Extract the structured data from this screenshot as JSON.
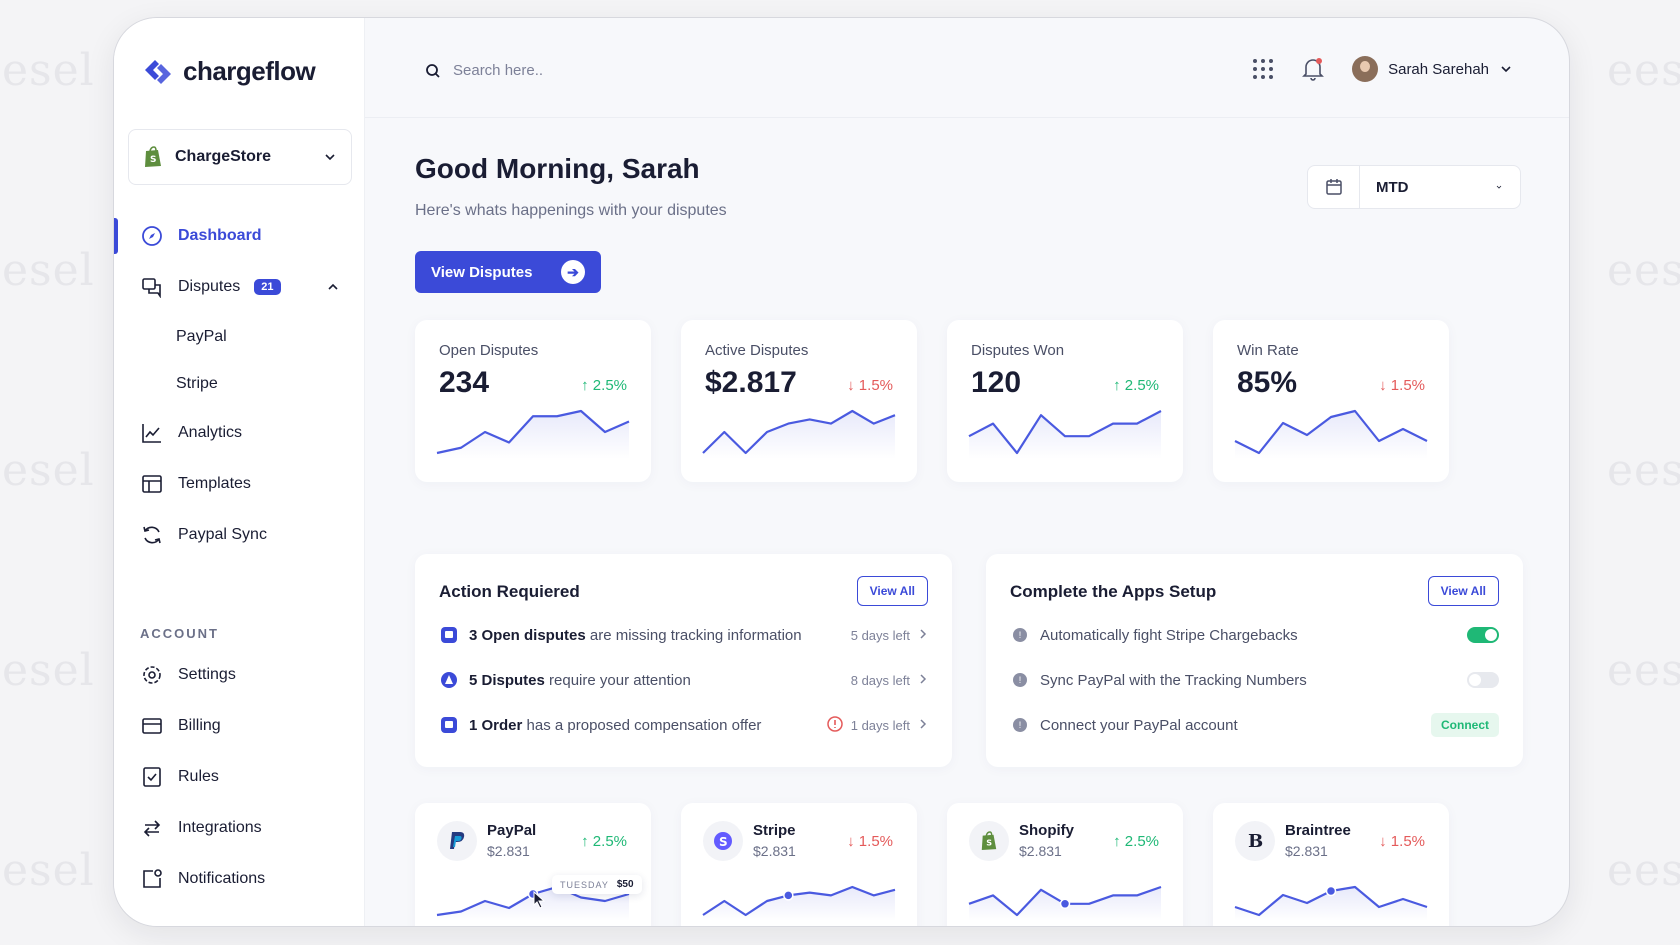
{
  "watermark": "esel",
  "watermark_right": "eese",
  "brand": {
    "name": "chargeflow",
    "accent": "#3b4ad8"
  },
  "store": {
    "name": "ChargeStore"
  },
  "nav": {
    "dashboard": "Dashboard",
    "disputes": "Disputes",
    "disputes_badge": "21",
    "paypal": "PayPal",
    "stripe": "Stripe",
    "analytics": "Analytics",
    "templates": "Templates",
    "paypal_sync": "Paypal Sync",
    "account_section": "ACCOUNT",
    "settings": "Settings",
    "billing": "Billing",
    "rules": "Rules",
    "integrations": "Integrations",
    "notifications": "Notifications"
  },
  "topbar": {
    "search_placeholder": "Search here..",
    "user_name": "Sarah Sarehah"
  },
  "header": {
    "greeting": "Good Morning, Sarah",
    "subtitle": "Here's whats happenings with your disputes",
    "cta": "View Disputes",
    "period": "MTD"
  },
  "stats": [
    {
      "title": "Open Disputes",
      "value": "234",
      "delta": "2.5%",
      "direction": "up",
      "trend": [
        4,
        5,
        8,
        6,
        11,
        11,
        12,
        8,
        10
      ]
    },
    {
      "title": "Active Disputes",
      "value": "$2.817",
      "delta": "1.5%",
      "direction": "down",
      "trend": [
        4,
        9,
        4,
        9,
        11,
        12,
        11,
        14,
        11,
        13
      ]
    },
    {
      "title": "Disputes Won",
      "value": "120",
      "delta": "2.5%",
      "direction": "up",
      "trend": [
        8,
        11,
        4,
        13,
        8,
        8,
        11,
        11,
        14
      ]
    },
    {
      "title": "Win Rate",
      "value": "85%",
      "delta": "1.5%",
      "direction": "down",
      "trend": [
        8,
        6,
        11,
        9,
        12,
        13,
        8,
        10,
        8
      ]
    }
  ],
  "action_required": {
    "title": "Action Requiered",
    "view_all": "View All",
    "items": [
      {
        "bold": "3 Open disputes",
        "text": " are missing tracking information",
        "meta": "5 days left"
      },
      {
        "bold": "5 Disputes",
        "text": " require your attention",
        "meta": "8 days left"
      },
      {
        "bold": "1 Order",
        "text": " has a proposed compensation offer",
        "meta": "1 days left"
      }
    ]
  },
  "apps_setup": {
    "title": "Complete the Apps Setup",
    "view_all": "View All",
    "items": [
      {
        "text": "Automatically fight Stripe Chargebacks",
        "control": "toggle-on"
      },
      {
        "text": "Sync PayPal with the Tracking Numbers",
        "control": "toggle-off"
      },
      {
        "text": "Connect your PayPal account",
        "control": "button",
        "label": "Connect"
      }
    ]
  },
  "processors": [
    {
      "name": "PayPal",
      "amount": "$2.831",
      "delta": "2.5%",
      "direction": "up",
      "icon": "paypal-icon",
      "trend": [
        4,
        5,
        8,
        6,
        10,
        12,
        9,
        8,
        10
      ],
      "highlight": 4
    },
    {
      "name": "Stripe",
      "amount": "$2.831",
      "delta": "1.5%",
      "direction": "down",
      "icon": "stripe-icon",
      "trend": [
        4,
        9,
        4,
        9,
        11,
        12,
        11,
        14,
        11,
        13
      ],
      "highlight": 4
    },
    {
      "name": "Shopify",
      "amount": "$2.831",
      "delta": "2.5%",
      "direction": "up",
      "icon": "shopify-icon",
      "trend": [
        8,
        11,
        4,
        13,
        8,
        8,
        11,
        11,
        14
      ],
      "highlight": 4
    },
    {
      "name": "Braintree",
      "amount": "$2.831",
      "delta": "1.5%",
      "direction": "down",
      "icon": "braintree-icon",
      "trend": [
        8,
        6,
        11,
        9,
        12,
        13,
        8,
        10,
        8
      ],
      "highlight": 4
    }
  ],
  "tooltip": {
    "day": "TUESDAY",
    "value": "$50"
  }
}
